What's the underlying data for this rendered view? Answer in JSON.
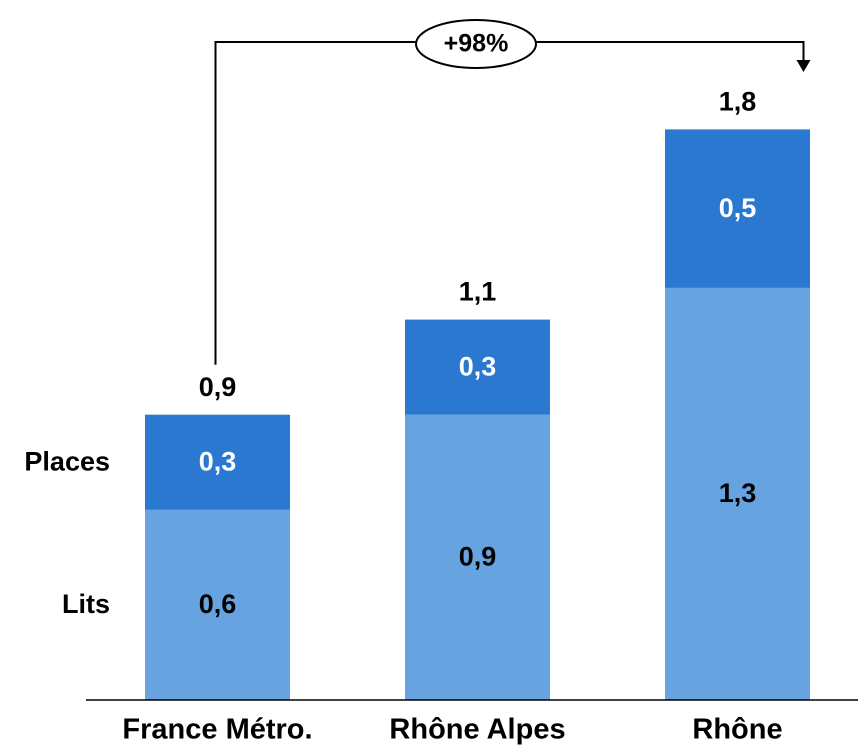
{
  "chart_data": {
    "type": "bar",
    "stacked": true,
    "categories": [
      "France Métro.",
      "Rhône Alpes",
      "Rhône"
    ],
    "series": [
      {
        "name": "Lits",
        "values": [
          0.6,
          0.9,
          1.3
        ],
        "labels": [
          "0,6",
          "0,9",
          "1,3"
        ],
        "color": "#66A3E0",
        "label_color": "#000000"
      },
      {
        "name": "Places",
        "values": [
          0.3,
          0.3,
          0.5
        ],
        "labels": [
          "0,3",
          "0,3",
          "0,5"
        ],
        "color": "#2A78D0",
        "label_color": "#FFFFFF"
      }
    ],
    "totals": [
      0.9,
      1.1,
      1.8
    ],
    "total_labels": [
      "0,9",
      "1,1",
      "1,8"
    ],
    "ylim": [
      0,
      1.8
    ],
    "legend_position": "left",
    "annotation": {
      "text": "+98%",
      "from": "France Métro.",
      "to": "Rhône"
    }
  }
}
